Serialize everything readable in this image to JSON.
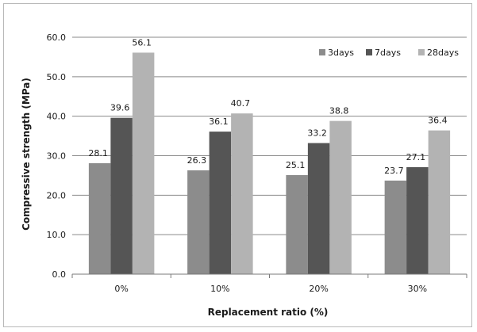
{
  "chart_data": {
    "type": "bar",
    "title": "",
    "xlabel": "Replacement ratio (%)",
    "ylabel": "Compressive strength (MPa)",
    "ylim": [
      0,
      60
    ],
    "y_ticks": [
      "0.0",
      "10.0",
      "20.0",
      "30.0",
      "40.0",
      "50.0",
      "60.0"
    ],
    "categories": [
      "0%",
      "10%",
      "20%",
      "30%"
    ],
    "series": [
      {
        "name": "3days",
        "color": "#8c8c8c",
        "values": [
          28.1,
          26.3,
          25.1,
          23.7
        ]
      },
      {
        "name": "7days",
        "color": "#555555",
        "values": [
          39.6,
          36.1,
          33.2,
          27.1
        ]
      },
      {
        "name": "28days",
        "color": "#b3b3b3",
        "values": [
          56.1,
          40.7,
          38.8,
          36.4
        ]
      }
    ],
    "grid": true,
    "legend_position": "top-right"
  }
}
